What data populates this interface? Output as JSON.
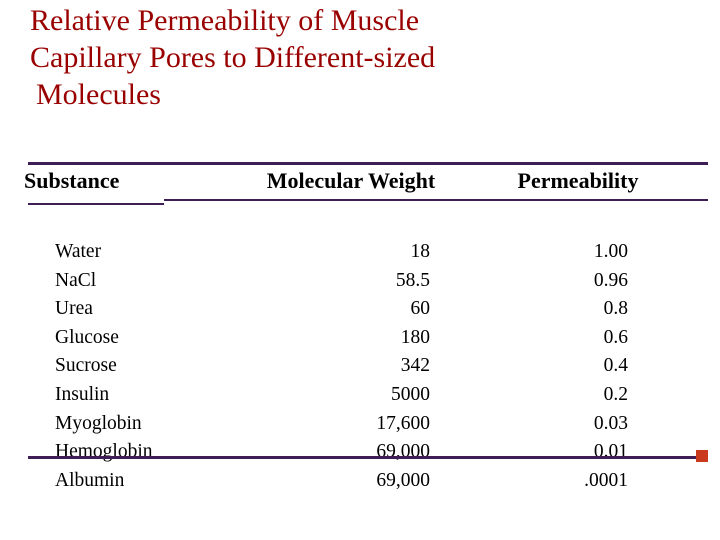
{
  "slide": {
    "title": {
      "line1": "Relative Permeability of Muscle",
      "line2": "Capillary Pores to Different-sized",
      "line3": "Molecules"
    }
  },
  "table": {
    "headers": {
      "substance": "Substance",
      "molecular_weight": "Molecular Weight",
      "permeability": "Permeability"
    },
    "rows": [
      {
        "substance": "Water",
        "mw": "18",
        "perm": "1.00"
      },
      {
        "substance": "NaCl",
        "mw": "58.5",
        "perm": "0.96"
      },
      {
        "substance": "Urea",
        "mw": "60",
        "perm": "0.8"
      },
      {
        "substance": "Glucose",
        "mw": "180",
        "perm": "0.6"
      },
      {
        "substance": "Sucrose",
        "mw": "342",
        "perm": "0.4"
      },
      {
        "substance": "Insulin",
        "mw": "5000",
        "perm": "0.2"
      },
      {
        "substance": "Myoglobin",
        "mw": "17,600",
        "perm": "0.03"
      },
      {
        "substance": "Hemoglobin",
        "mw": "69,000",
        "perm": "0.01"
      },
      {
        "substance": "Albumin",
        "mw": "69,000",
        "perm": ".0001"
      }
    ]
  },
  "colors": {
    "title_red": "#990000",
    "rule_purple": "#3e1e55",
    "marker_red": "#c93a1f"
  }
}
